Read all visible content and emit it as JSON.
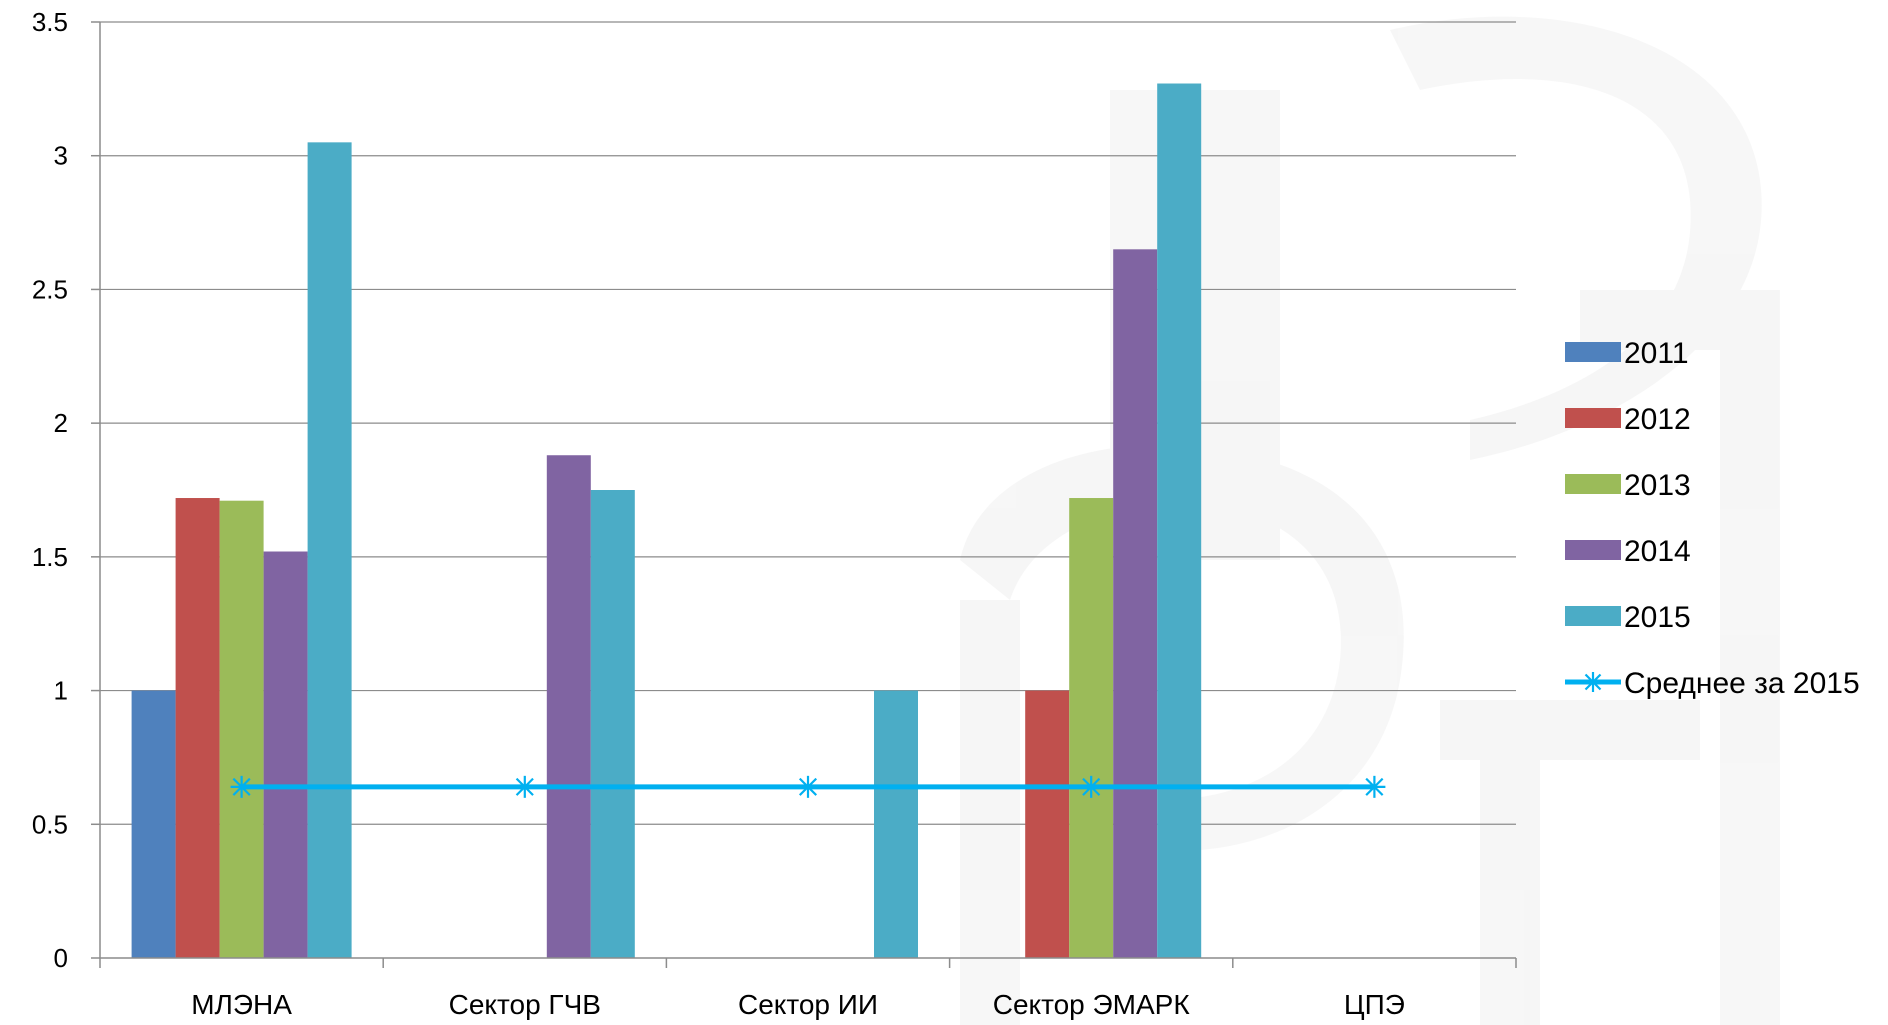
{
  "chart_data": {
    "type": "bar",
    "categories": [
      "МЛЭНА",
      "Сектор ГЧВ",
      "Сектор ИИ",
      "Сектор ЭМАРК",
      "ЦПЭ"
    ],
    "series": [
      {
        "name": "2011",
        "color": "#4f81bd",
        "values": [
          1.0,
          0,
          0,
          0,
          0
        ]
      },
      {
        "name": "2012",
        "color": "#c0504d",
        "values": [
          1.72,
          0,
          0,
          1.0,
          0
        ]
      },
      {
        "name": "2013",
        "color": "#9bbb59",
        "values": [
          1.71,
          0,
          0,
          1.72,
          0
        ]
      },
      {
        "name": "2014",
        "color": "#8064a2",
        "values": [
          1.52,
          1.88,
          0,
          2.65,
          0
        ]
      },
      {
        "name": "2015",
        "color": "#4bacc6",
        "values": [
          3.05,
          1.75,
          1.0,
          3.27,
          0
        ]
      }
    ],
    "line_series": {
      "name": "Среднее за 2015",
      "color": "#00b0f0",
      "marker": "asterisk",
      "values": [
        0.64,
        0.64,
        0.64,
        0.64,
        0.64
      ]
    },
    "y_ticks": [
      "0",
      "0.5",
      "1",
      "1.5",
      "2",
      "2.5",
      "3",
      "3.5"
    ],
    "ylim": [
      0,
      3.5
    ],
    "grid": true,
    "legend_position": "right"
  }
}
